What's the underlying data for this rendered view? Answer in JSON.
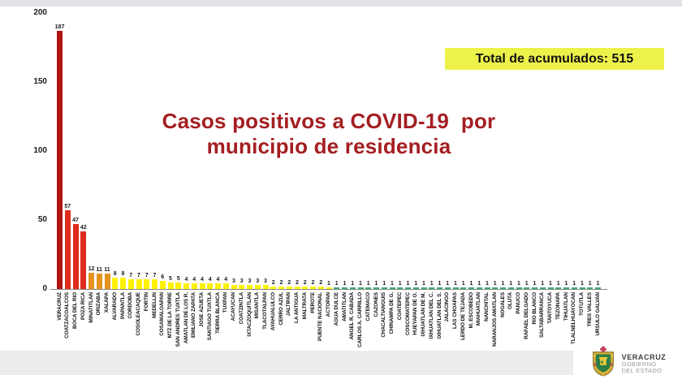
{
  "slide": {
    "title_line1": "Casos positivos a COVID-19  por",
    "title_line2": "municipio de residencia",
    "total_box": "Total de acumulados: 515"
  },
  "footer": {
    "brand": "VERACRUZ",
    "brand_sub1": "GOBIERNO",
    "brand_sub2": "DEL ESTADO"
  },
  "colors": {
    "darkred": "#b01513",
    "red": "#df2b1c",
    "orange": "#e6921e",
    "yellow": "#fff200",
    "green": "#3fa96f",
    "title_text": "#a41e22",
    "total_bg": "#edf24b"
  },
  "chart_data": {
    "type": "bar",
    "title": "Casos positivos a COVID-19 por municipio de residencia",
    "xlabel": "",
    "ylabel": "",
    "ylim": [
      0,
      200
    ],
    "yticks": [
      0,
      50,
      100,
      150,
      200
    ],
    "grid": false,
    "legend": false,
    "total_accumulated": 515,
    "bars": [
      {
        "name": "VERACRUZ",
        "value": 187,
        "color": "darkred"
      },
      {
        "name": "COATZACOALCOS",
        "value": 57,
        "color": "red"
      },
      {
        "name": "BOCA DEL RIO",
        "value": 47,
        "color": "red"
      },
      {
        "name": "POZA RICA",
        "value": 42,
        "color": "red"
      },
      {
        "name": "MINATITLAN",
        "value": 12,
        "color": "orange"
      },
      {
        "name": "ORIZABA",
        "value": 11,
        "color": "orange"
      },
      {
        "name": "XALAPA",
        "value": 11,
        "color": "orange"
      },
      {
        "name": "ALVARADO",
        "value": 8,
        "color": "yellow"
      },
      {
        "name": "PAPANTLA",
        "value": 8,
        "color": "yellow"
      },
      {
        "name": "CORDOBA",
        "value": 7,
        "color": "yellow"
      },
      {
        "name": "COSOLEACAQUE",
        "value": 7,
        "color": "yellow"
      },
      {
        "name": "FORTIN",
        "value": 7,
        "color": "yellow"
      },
      {
        "name": "MEDELLIN",
        "value": 7,
        "color": "yellow"
      },
      {
        "name": "COSAMALOAPAN",
        "value": 6,
        "color": "yellow"
      },
      {
        "name": "MTZ DE LA TORRE",
        "value": 5,
        "color": "yellow"
      },
      {
        "name": "SAN ANDRES TUXTLA",
        "value": 5,
        "color": "yellow"
      },
      {
        "name": "AMATLAN DE LOS R.",
        "value": 4,
        "color": "yellow"
      },
      {
        "name": "EMILIANO ZAPATA",
        "value": 4,
        "color": "yellow"
      },
      {
        "name": "JOSE AZUETA",
        "value": 4,
        "color": "yellow"
      },
      {
        "name": "SANTIAGO TUXTLA",
        "value": 4,
        "color": "yellow"
      },
      {
        "name": "TIERRA BLANCA",
        "value": 4,
        "color": "yellow"
      },
      {
        "name": "TUXPAN",
        "value": 4,
        "color": "yellow"
      },
      {
        "name": "ACAYUCAN",
        "value": 3,
        "color": "yellow"
      },
      {
        "name": "COATZINTLA",
        "value": 3,
        "color": "yellow"
      },
      {
        "name": "IXTACZOQUITLAN",
        "value": 3,
        "color": "yellow"
      },
      {
        "name": "MISANTLA",
        "value": 3,
        "color": "yellow"
      },
      {
        "name": "TLACOTALPAN",
        "value": 3,
        "color": "yellow"
      },
      {
        "name": "AYAHUALULCO",
        "value": 2,
        "color": "yellow"
      },
      {
        "name": "CERRO AZUL",
        "value": 2,
        "color": "yellow"
      },
      {
        "name": "JALTIPAN",
        "value": 2,
        "color": "yellow"
      },
      {
        "name": "LA ANTIGUA",
        "value": 2,
        "color": "yellow"
      },
      {
        "name": "MALTRATA",
        "value": 2,
        "color": "yellow"
      },
      {
        "name": "PEROTE",
        "value": 2,
        "color": "yellow"
      },
      {
        "name": "PUENTE NACIONAL",
        "value": 2,
        "color": "yellow"
      },
      {
        "name": "ACTOPAN",
        "value": 1,
        "color": "yellow"
      },
      {
        "name": "AGUA DULCE",
        "value": 1,
        "color": "green"
      },
      {
        "name": "AMATITLAN",
        "value": 1,
        "color": "green"
      },
      {
        "name": "ANGEL R. CABADA",
        "value": 1,
        "color": "green"
      },
      {
        "name": "CARLOS A. CARRILLO",
        "value": 1,
        "color": "green"
      },
      {
        "name": "CATEMACO",
        "value": 1,
        "color": "green"
      },
      {
        "name": "CAZONES",
        "value": 1,
        "color": "green"
      },
      {
        "name": "CHACALTIANGUIS",
        "value": 1,
        "color": "green"
      },
      {
        "name": "CHINAMPA DE G.",
        "value": 1,
        "color": "green"
      },
      {
        "name": "COATEPEC",
        "value": 1,
        "color": "green"
      },
      {
        "name": "COSCOMATEPEC",
        "value": 1,
        "color": "green"
      },
      {
        "name": "HUEYAPAN DE O.",
        "value": 1,
        "color": "green"
      },
      {
        "name": "IXHUATLAN DE M.",
        "value": 1,
        "color": "green"
      },
      {
        "name": "IXHUATLAN DEL C.",
        "value": 1,
        "color": "green"
      },
      {
        "name": "IXHUATLAN DEL S.",
        "value": 1,
        "color": "green"
      },
      {
        "name": "JALACINGO",
        "value": 1,
        "color": "green"
      },
      {
        "name": "LAS CHOAPAS",
        "value": 1,
        "color": "green"
      },
      {
        "name": "LERDO DE TEJADA",
        "value": 1,
        "color": "green"
      },
      {
        "name": "M. ESCOBEDO",
        "value": 1,
        "color": "green"
      },
      {
        "name": "MIAHUATLAN",
        "value": 1,
        "color": "green"
      },
      {
        "name": "NANCHITAL",
        "value": 1,
        "color": "green"
      },
      {
        "name": "NARANJOS AMATLAN",
        "value": 1,
        "color": "green"
      },
      {
        "name": "NOGALES",
        "value": 1,
        "color": "green"
      },
      {
        "name": "OLUTA",
        "value": 1,
        "color": "green"
      },
      {
        "name": "PANUCO",
        "value": 1,
        "color": "green"
      },
      {
        "name": "RAFAEL DELGADO",
        "value": 1,
        "color": "green"
      },
      {
        "name": "RIO BLANCO",
        "value": 1,
        "color": "green"
      },
      {
        "name": "SALTABARRANCA",
        "value": 1,
        "color": "green"
      },
      {
        "name": "TANTOYUCA",
        "value": 1,
        "color": "green"
      },
      {
        "name": "TEZONAPA",
        "value": 1,
        "color": "green"
      },
      {
        "name": "TIHUATLAN",
        "value": 1,
        "color": "green"
      },
      {
        "name": "TLALNELHUAYOCAN",
        "value": 1,
        "color": "green"
      },
      {
        "name": "TOTUTLA",
        "value": 1,
        "color": "green"
      },
      {
        "name": "TRES VALLES",
        "value": 1,
        "color": "green"
      },
      {
        "name": "URSULO GALVAN",
        "value": 1,
        "color": "green"
      }
    ]
  }
}
